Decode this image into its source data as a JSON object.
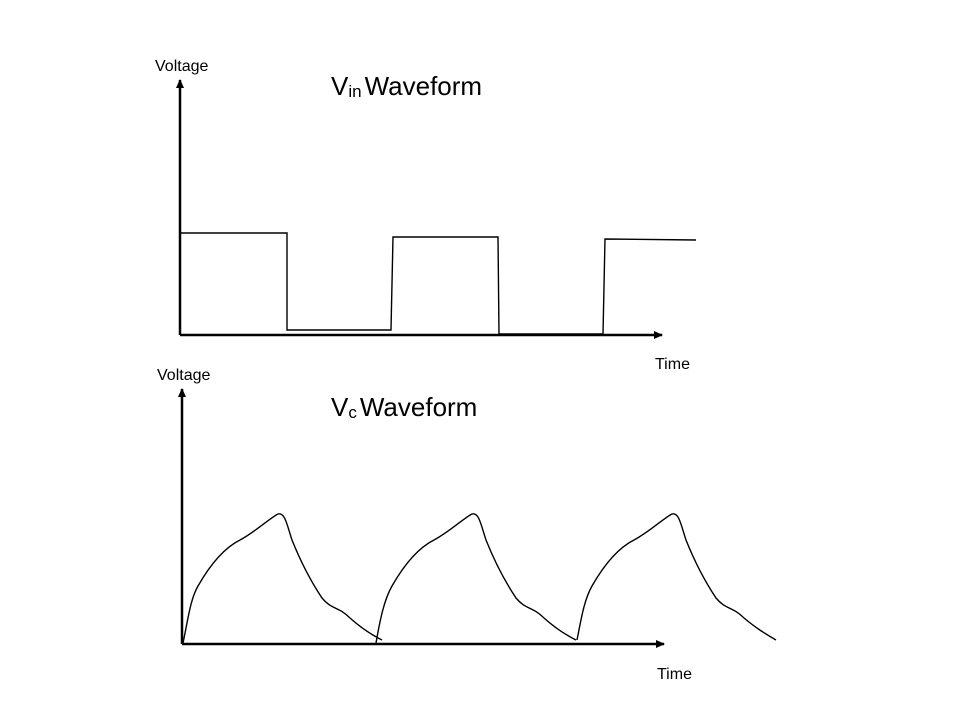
{
  "top_panel": {
    "title_main": "V",
    "title_sub": "in",
    "title_rest": "Waveform",
    "y_axis_label": "Voltage",
    "x_axis_label": "Time"
  },
  "bottom_panel": {
    "title_main": "V",
    "title_sub": "c",
    "title_rest": "Waveform",
    "y_axis_label": "Voltage",
    "x_axis_label": "Time"
  }
}
